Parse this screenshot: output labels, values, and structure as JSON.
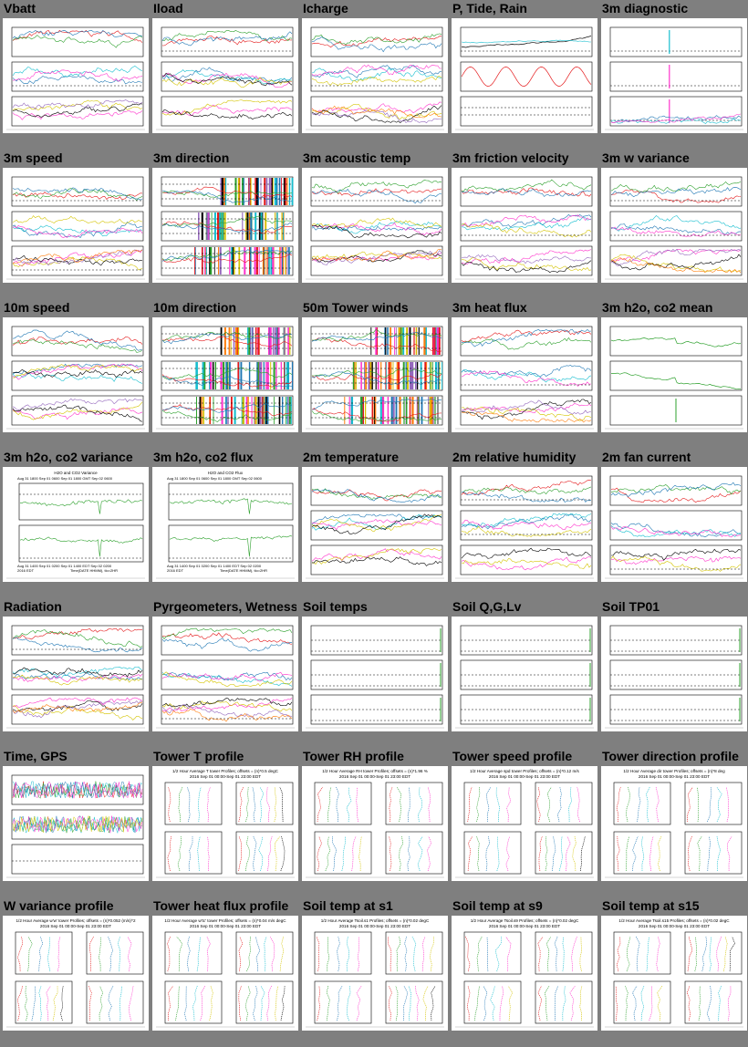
{
  "tiles": [
    {
      "title": "Vbatt",
      "kind": "ts3"
    },
    {
      "title": "Iload",
      "kind": "ts3"
    },
    {
      "title": "Icharge",
      "kind": "ts3"
    },
    {
      "title": "P, Tide, Rain",
      "kind": "tide"
    },
    {
      "title": "3m diagnostic",
      "kind": "diag"
    },
    {
      "title": "3m speed",
      "kind": "ts3"
    },
    {
      "title": "3m direction",
      "kind": "dir"
    },
    {
      "title": "3m acoustic temp",
      "kind": "ts3"
    },
    {
      "title": "3m friction velocity",
      "kind": "ts3"
    },
    {
      "title": "3m w variance",
      "kind": "ts3"
    },
    {
      "title": "10m speed",
      "kind": "ts3"
    },
    {
      "title": "10m direction",
      "kind": "dir"
    },
    {
      "title": "50m Tower winds",
      "kind": "dir"
    },
    {
      "title": "3m heat flux",
      "kind": "ts3"
    },
    {
      "title": "3m h2o, co2 mean",
      "kind": "single"
    },
    {
      "title": "3m h2o, co2 variance",
      "kind": "two",
      "header": "H2O and CO2 Variance",
      "axis_top": "Aug 31 1800    Sep 01 0600    Sep 01 1800 GMT    Sep 02 0600",
      "axis_bottom": "Aug 31 1400    Sep 01 0200    Sep 01 1400 EDT    Sep 02 0200",
      "time_label": "Time(DATE HHMM), tlo=2HR",
      "year": "2016 EDT"
    },
    {
      "title": "3m h2o, co2 flux",
      "kind": "two",
      "header": "H2O and CO2 Flux",
      "axis_top": "Aug 31 1800    Sep 01 0600    Sep 01 1800 GMT    Sep 02 0600",
      "axis_bottom": "Aug 31 1400    Sep 01 0200    Sep 01 1400 EDT    Sep 02 0200",
      "time_label": "Time(DATE HHMM), tlo=2HR",
      "year": "2016 EDT"
    },
    {
      "title": "2m temperature",
      "kind": "ts3"
    },
    {
      "title": "2m relative humidity",
      "kind": "ts3"
    },
    {
      "title": "2m fan current",
      "kind": "ts3"
    },
    {
      "title": "Radiation",
      "kind": "ts3"
    },
    {
      "title": "Pyrgeometers, Wetness",
      "kind": "ts3"
    },
    {
      "title": "Soil temps",
      "kind": "flat"
    },
    {
      "title": "Soil Q,G,Lv",
      "kind": "flat"
    },
    {
      "title": "Soil TP01",
      "kind": "flat"
    },
    {
      "title": "Time, GPS",
      "kind": "noise"
    },
    {
      "title": "Tower T profile",
      "kind": "profile",
      "header": "1/2 Hour Average T tower Profiles; offsets = (n)*0.5 degC",
      "sub": "2016 Sep 01 00:00-Sep 01 23:00 EDT"
    },
    {
      "title": "Tower RH profile",
      "kind": "profile",
      "header": "1/2 Hour Average RH tower Profiles; offsets = (n)*1.96 %",
      "sub": "2016 Sep 01 00:00-Sep 01 23:00 EDT"
    },
    {
      "title": "Tower speed profile",
      "kind": "profile",
      "header": "1/2 Hour Average spd tower Profiles; offsets = (n)*0.12 m/s",
      "sub": "2016 Sep 01 00:00-Sep 01 23:00 EDT"
    },
    {
      "title": "Tower direction profile",
      "kind": "profile",
      "header": "1/2 Hour Average dir tower Profiles; offsets = (n)*8 deg",
      "sub": "2016 Sep 01 00:00-Sep 01 23:00 EDT"
    },
    {
      "title": "W variance profile",
      "kind": "profile",
      "header": "1/2 Hour Average w'w' tower Profiles; offsets = (n)*0.052 (m/s)^2",
      "sub": "2016 Sep 01 00:00-Sep 01 23:00 EDT"
    },
    {
      "title": "Tower heat flux profile",
      "kind": "profile",
      "header": "1/2 Hour Average w'tc' tower Profiles; offsets = (n)*0.04 m/s degC",
      "sub": "2016 Sep 01 00:00-Sep 01 23:00 EDT"
    },
    {
      "title": "Soil temp at s1",
      "kind": "profile",
      "header": "1/2 Hour Average Tsoil.s1 Profiles; offsets = (n)*0.02 degC",
      "sub": "2016 Sep 01 00:00-Sep 01 23:00 EDT"
    },
    {
      "title": "Soil temp at s9",
      "kind": "profile",
      "header": "1/2 Hour Average Tsoil.s9 Profiles; offsets = (n)*0.02 degC",
      "sub": "2016 Sep 01 00:00-Sep 01 23:00 EDT"
    },
    {
      "title": "Soil temp at s15",
      "kind": "profile",
      "header": "1/2 Hour Average Tsoil.s15 Profiles; offsets = (n)*0.02 degC",
      "sub": "2016 Sep 01 00:00-Sep 01 23:00 EDT"
    }
  ],
  "colors": {
    "background": "#7f7f7f",
    "series": [
      "#e41a1c",
      "#2ca02c",
      "#1f77b4",
      "#17becf",
      "#ff33cc",
      "#d4c400",
      "#000000",
      "#9467bd",
      "#ff7f0e"
    ]
  }
}
